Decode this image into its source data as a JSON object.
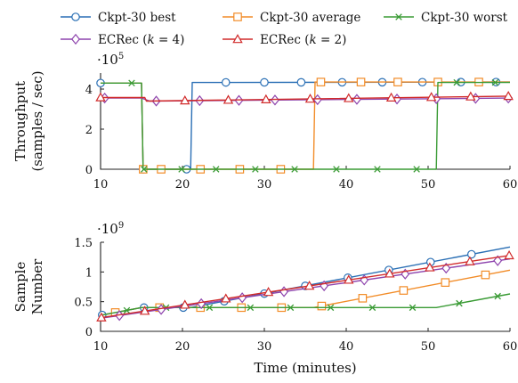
{
  "chart_data": [
    {
      "type": "line",
      "title": "",
      "xlabel": "",
      "ylabel": [
        "Throughput",
        "(samples / sec)"
      ],
      "y_multiplier": "·10^5",
      "xlim": [
        10,
        60
      ],
      "ylim": [
        0,
        4.8
      ],
      "x_ticks": [
        10,
        20,
        30,
        40,
        50,
        60
      ],
      "y_ticks": [
        0,
        2,
        4
      ],
      "grid": false,
      "series": [
        {
          "name": "Ckpt-30 best",
          "color": "#2a6fb5",
          "marker": "circle",
          "x": [
            10,
            15,
            15.2,
            21,
            21.2,
            60
          ],
          "y": [
            4.3,
            4.3,
            0,
            0,
            4.33,
            4.35
          ],
          "marker_x": [
            10,
            15.2,
            20.5,
            25.3,
            30,
            34.5,
            39.5,
            44.4,
            49.3,
            54,
            58.3
          ]
        },
        {
          "name": "Ckpt-30 average",
          "color": "#f28c28",
          "marker": "square",
          "x": [
            10,
            15,
            15.2,
            36,
            36.2,
            60
          ],
          "y": [
            4.3,
            4.3,
            0,
            0,
            4.35,
            4.35
          ],
          "marker_x": [
            15.2,
            17.4,
            22.2,
            27,
            32,
            36.9,
            41.8,
            46.3,
            51.2,
            56.2
          ]
        },
        {
          "name": "Ckpt-30 worst",
          "color": "#3a9b35",
          "marker": "x",
          "x": [
            10,
            15,
            15.2,
            51,
            51.2,
            60
          ],
          "y": [
            4.3,
            4.3,
            0,
            0,
            4.33,
            4.33
          ],
          "marker_x": [
            13.8,
            15.3,
            19.9,
            24.1,
            28.9,
            33.7,
            38.8,
            43.8,
            48.6,
            53.5,
            58.2
          ]
        },
        {
          "name": "ECRec (k = 4)",
          "color": "#8e44ad",
          "marker": "diamond",
          "x": [
            10,
            15,
            16,
            60
          ],
          "y": [
            3.55,
            3.55,
            3.4,
            3.55
          ],
          "marker_x": [
            10.5,
            16.8,
            22.1,
            26.9,
            31.3,
            36.5,
            41.3,
            46.2,
            51,
            55.8,
            59.8
          ]
        },
        {
          "name": "ECRec (k = 2)",
          "color": "#d12b2b",
          "marker": "triangle",
          "x": [
            10,
            15.4,
            15.6,
            60
          ],
          "y": [
            3.58,
            3.58,
            3.4,
            3.65
          ],
          "marker_x": [
            10,
            20.3,
            25.6,
            30.2,
            35.6,
            40.3,
            45.5,
            50.4,
            55.2,
            59.8
          ]
        }
      ]
    },
    {
      "type": "line",
      "title": "",
      "xlabel": "Time (minutes)",
      "ylabel": [
        "Sample",
        "Number"
      ],
      "y_multiplier": "·10^9",
      "xlim": [
        10,
        60
      ],
      "ylim": [
        0,
        1.5
      ],
      "x_ticks": [
        10,
        20,
        30,
        40,
        50,
        60
      ],
      "y_ticks": [
        0,
        0.5,
        1,
        1.5
      ],
      "grid": false,
      "series": [
        {
          "name": "Ckpt-30 best",
          "color": "#2a6fb5",
          "marker": "circle",
          "x": [
            10,
            15,
            21,
            60
          ],
          "y": [
            0.27,
            0.4,
            0.4,
            1.42
          ],
          "marker_x": [
            10.2,
            15.3,
            20.1,
            25.1,
            30,
            35,
            40.2,
            45.2,
            50.3,
            55.3
          ]
        },
        {
          "name": "Ckpt-30 average",
          "color": "#f28c28",
          "marker": "square",
          "x": [
            10,
            15,
            36,
            60
          ],
          "y": [
            0.27,
            0.4,
            0.4,
            1.03
          ],
          "marker_x": [
            11.8,
            17.2,
            22.2,
            27.2,
            32.1,
            37,
            42,
            47,
            52.1,
            57
          ]
        },
        {
          "name": "Ckpt-30 worst",
          "color": "#3a9b35",
          "marker": "x",
          "x": [
            10,
            15,
            51,
            60
          ],
          "y": [
            0.27,
            0.4,
            0.4,
            0.63
          ],
          "marker_x": [
            13.2,
            18,
            23.3,
            28.3,
            33.2,
            38.1,
            43.2,
            48.1,
            53.8,
            58.5
          ]
        },
        {
          "name": "ECRec (k = 4)",
          "color": "#8e44ad",
          "marker": "diamond",
          "x": [
            10,
            60
          ],
          "y": [
            0.22,
            1.22
          ],
          "marker_x": [
            12.3,
            17.4,
            22.3,
            27.3,
            32.4,
            37.3,
            42.2,
            47.2,
            52.2,
            58.5
          ]
        },
        {
          "name": "ECRec (k = 2)",
          "color": "#d12b2b",
          "marker": "triangle",
          "x": [
            10,
            60
          ],
          "y": [
            0.23,
            1.28
          ],
          "marker_x": [
            10.1,
            15.4,
            20.3,
            25.3,
            30.5,
            35.5,
            40.3,
            45.3,
            50.2,
            55.1,
            59.9
          ]
        }
      ]
    }
  ],
  "legend": {
    "placement": "top",
    "items": [
      {
        "name": "Ckpt-30 best",
        "color": "#2a6fb5",
        "marker": "circle"
      },
      {
        "name": "Ckpt-30 average",
        "color": "#f28c28",
        "marker": "square"
      },
      {
        "name": "Ckpt-30 worst",
        "color": "#3a9b35",
        "marker": "x"
      },
      {
        "name": "ECRec (k = 4)",
        "color": "#8e44ad",
        "marker": "diamond"
      },
      {
        "name": "ECRec (k = 2)",
        "color": "#d12b2b",
        "marker": "triangle"
      }
    ]
  }
}
